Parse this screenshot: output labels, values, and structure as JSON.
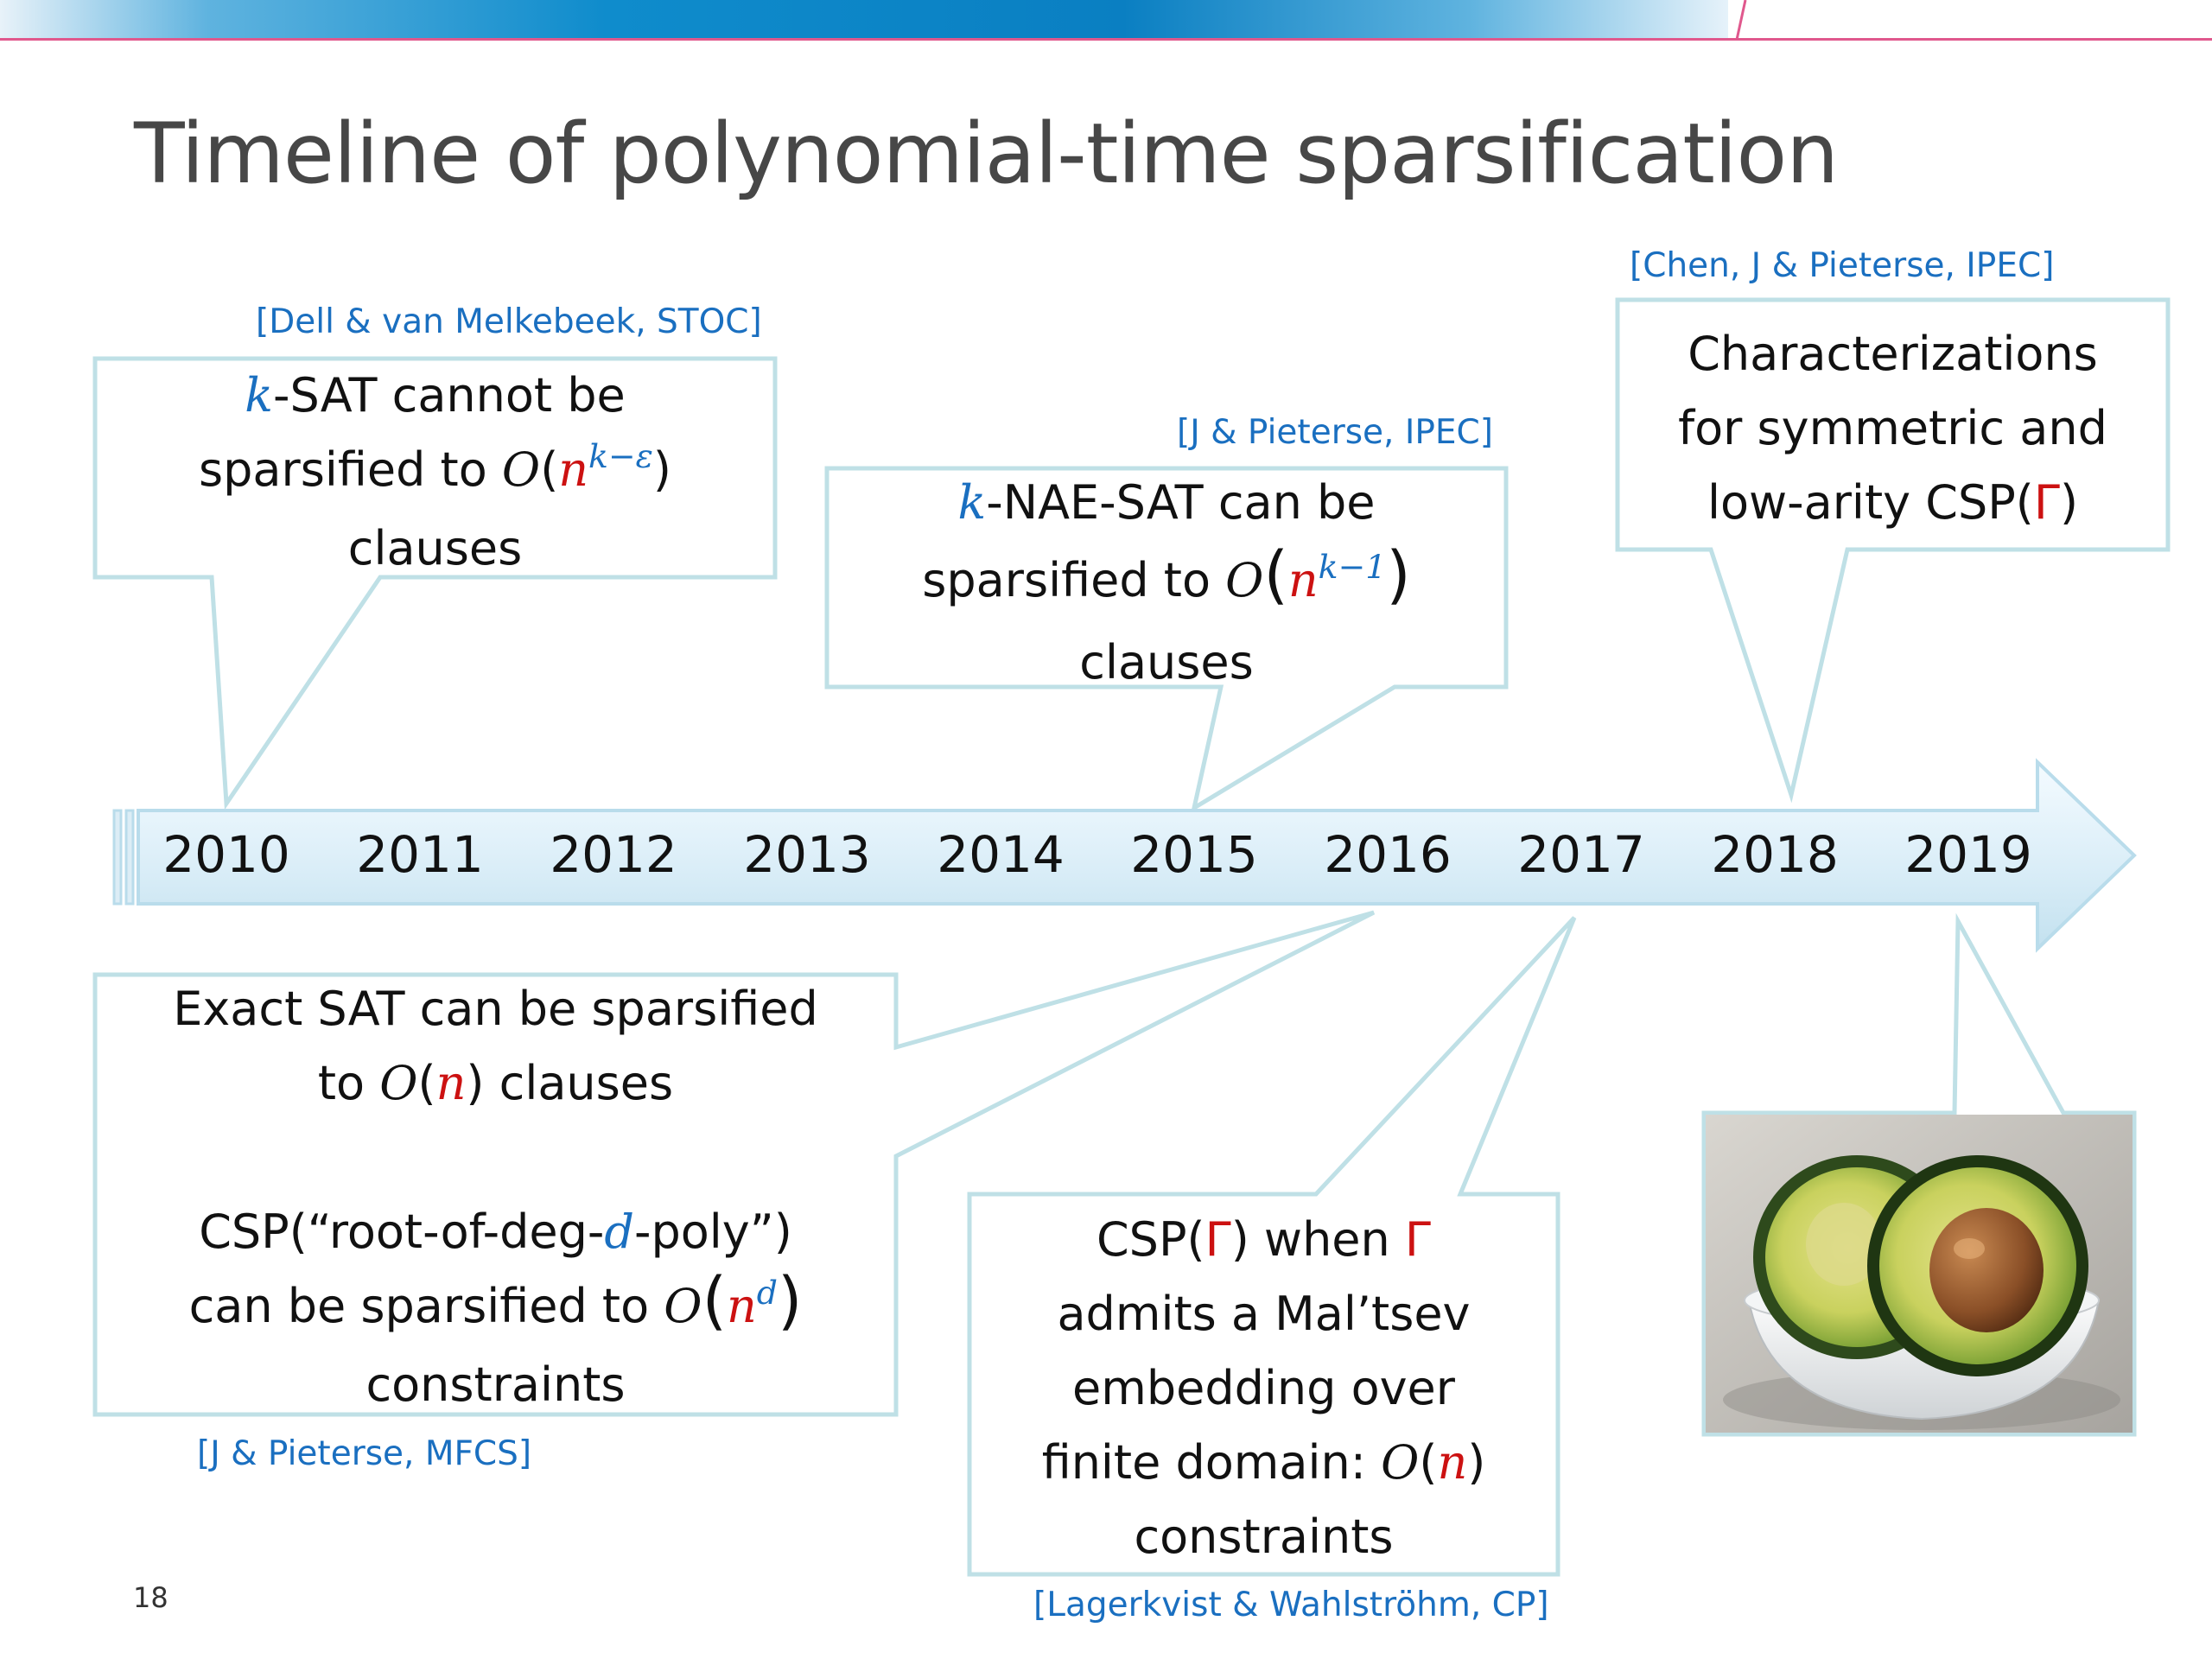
{
  "slide": {
    "title": "Timeline of polynomial-time sparsification",
    "page_number": "18"
  },
  "timeline": {
    "years": [
      "2010",
      "2011",
      "2012",
      "2013",
      "2014",
      "2015",
      "2016",
      "2017",
      "2018",
      "2019"
    ]
  },
  "events": {
    "ksat": {
      "citation": "[Dell & van Melkebeek, STOC]",
      "var_k": "k",
      "text_1": "-SAT cannot be",
      "text_2": "sparsified to ",
      "big_o": "O",
      "paren_open": "(",
      "var_n": "n",
      "exponent": "k−ε",
      "paren_close": ")",
      "text_3": "clauses"
    },
    "naesat": {
      "citation": "[J & Pieterse, IPEC]",
      "var_k": "k",
      "text_1": "-NAE-SAT can be",
      "text_2": "sparsified to ",
      "big_o": "O",
      "paren_open": "(",
      "var_n": "n",
      "exponent": "k−1",
      "paren_close": ")",
      "text_3": "clauses"
    },
    "characterizations": {
      "citation": "[Chen, J & Pieterse, IPEC]",
      "text_1": "Characterizations",
      "text_2": "for symmetric and",
      "text_3": "low-arity CSP(",
      "gamma": "Γ",
      "text_3_end": ")"
    },
    "exact_sat": {
      "citation": "[J & Pieterse, MFCS]",
      "text_1": "Exact SAT can be sparsified",
      "text_2": "to ",
      "big_o": "O",
      "paren_open": "(",
      "var_n": "n",
      "paren_close": ")",
      "text_2_end": " clauses",
      "text_3": "CSP(“root-of-deg-",
      "var_d": "d",
      "text_3_end": "-poly”)",
      "text_4": "can be sparsified to ",
      "big_o_2": "O",
      "paren_open_2": "(",
      "var_n_2": "n",
      "exponent_2": "d",
      "paren_close_2": ")",
      "text_5": "constraints"
    },
    "maltsev": {
      "citation": "[Lagerkvist & Wahlströhm, CP]",
      "text_1": "CSP(",
      "gamma": "Γ",
      "text_1_mid": ") when ",
      "gamma_2": "Γ",
      "text_2": "admits a Mal’tsev",
      "text_3": "embedding over",
      "text_4": "finite domain: ",
      "big_o": "O",
      "paren_open": "(",
      "var_n": "n",
      "paren_close": ")",
      "text_5": "constraints"
    }
  },
  "colors": {
    "accent_blue": "#1a6fc0",
    "math_red": "#cc1111",
    "header_pink": "#e0588d",
    "callout_border": "#bfe0e6"
  }
}
